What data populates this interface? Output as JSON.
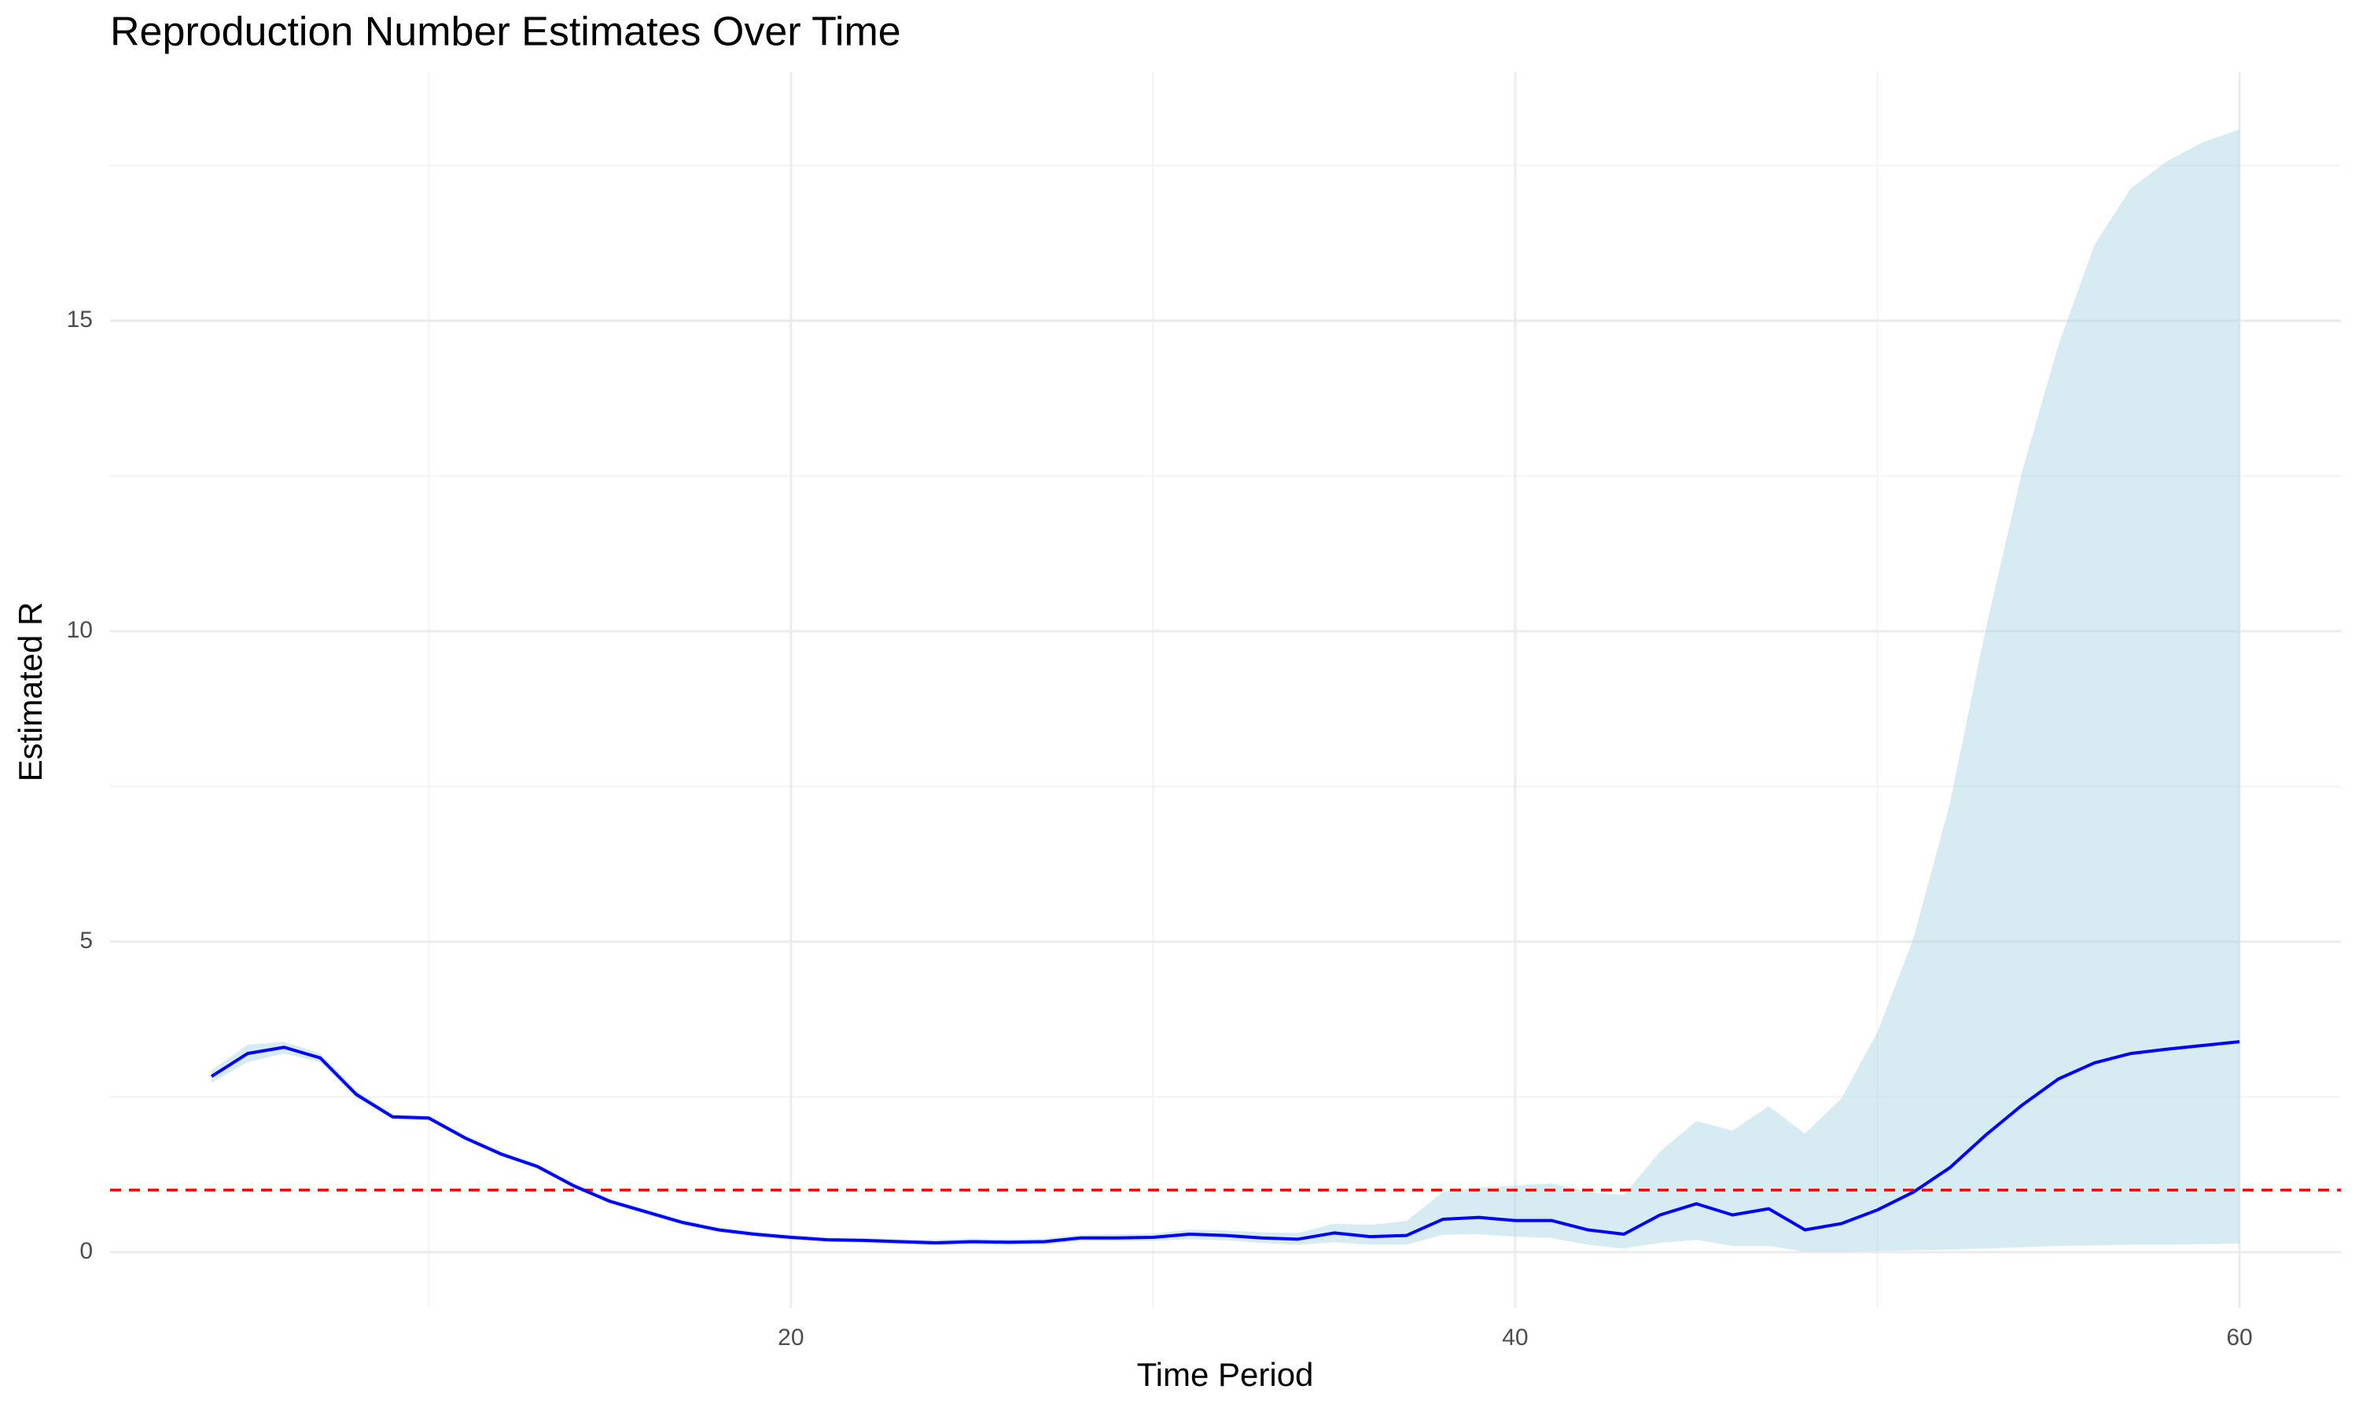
{
  "chart_data": {
    "type": "line",
    "title": "Reproduction Number Estimates Over Time",
    "x_label": "Time Period",
    "y_label": "Estimated R",
    "x": [
      4,
      5,
      6,
      7,
      8,
      9,
      10,
      11,
      12,
      13,
      14,
      15,
      16,
      17,
      18,
      19,
      20,
      21,
      22,
      23,
      24,
      25,
      26,
      27,
      28,
      29,
      30,
      31,
      32,
      33,
      34,
      35,
      36,
      37,
      38,
      39,
      40,
      41,
      42,
      43,
      44,
      45,
      46,
      47,
      48,
      49,
      50,
      51,
      52,
      53,
      54,
      55,
      56,
      57,
      58,
      59,
      60
    ],
    "values": [
      2.83,
      3.2,
      3.3,
      3.13,
      2.54,
      2.18,
      2.16,
      1.84,
      1.58,
      1.38,
      1.07,
      0.82,
      0.65,
      0.48,
      0.36,
      0.29,
      0.24,
      0.2,
      0.19,
      0.17,
      0.15,
      0.17,
      0.16,
      0.17,
      0.23,
      0.23,
      0.24,
      0.29,
      0.27,
      0.23,
      0.21,
      0.31,
      0.25,
      0.27,
      0.53,
      0.56,
      0.51,
      0.51,
      0.36,
      0.29,
      0.6,
      0.78,
      0.6,
      0.7,
      0.36,
      0.46,
      0.68,
      0.97,
      1.36,
      1.89,
      2.37,
      2.79,
      3.05,
      3.2,
      3.27,
      3.33,
      3.39
    ],
    "upper": [
      2.93,
      3.34,
      3.39,
      3.2,
      2.6,
      2.22,
      2.2,
      1.88,
      1.62,
      1.42,
      1.11,
      0.86,
      0.69,
      0.52,
      0.4,
      0.33,
      0.28,
      0.24,
      0.23,
      0.21,
      0.2,
      0.22,
      0.21,
      0.22,
      0.28,
      0.29,
      0.3,
      0.36,
      0.35,
      0.32,
      0.31,
      0.46,
      0.44,
      0.5,
      0.97,
      1.04,
      1.07,
      1.11,
      0.97,
      0.92,
      1.62,
      2.11,
      1.96,
      2.35,
      1.91,
      2.47,
      3.54,
      5.06,
      7.22,
      10.06,
      12.58,
      14.61,
      16.23,
      17.13,
      17.57,
      17.88,
      18.08
    ],
    "lower": [
      2.73,
      3.06,
      3.2,
      3.06,
      2.48,
      2.14,
      2.12,
      1.8,
      1.54,
      1.34,
      1.03,
      0.78,
      0.61,
      0.44,
      0.32,
      0.25,
      0.2,
      0.17,
      0.15,
      0.13,
      0.11,
      0.12,
      0.11,
      0.12,
      0.18,
      0.18,
      0.18,
      0.21,
      0.19,
      0.15,
      0.12,
      0.16,
      0.12,
      0.12,
      0.28,
      0.29,
      0.25,
      0.23,
      0.12,
      0.06,
      0.15,
      0.2,
      0.1,
      0.1,
      0.01,
      0.01,
      0.02,
      0.03,
      0.04,
      0.06,
      0.08,
      0.1,
      0.11,
      0.12,
      0.12,
      0.13,
      0.14
    ],
    "color": "#0000ff",
    "ribbon_color": "#add8e6",
    "hline": {
      "value": 1,
      "color": "#ff0000"
    },
    "xlim": [
      1.2,
      62.8
    ],
    "ylim": [
      -0.9,
      19.0
    ],
    "xticks": [
      20,
      40,
      60
    ],
    "yticks": [
      0,
      5,
      10,
      15
    ],
    "xminor": [
      10,
      30,
      50
    ],
    "yminor": [
      2.5,
      7.5,
      12.5,
      17.5
    ],
    "grid": true
  }
}
